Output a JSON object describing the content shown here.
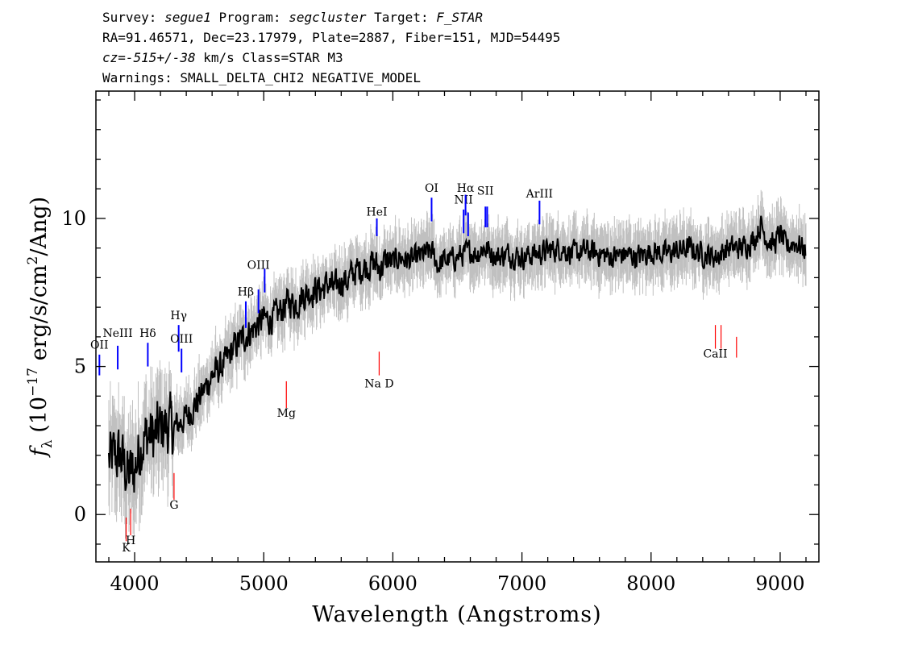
{
  "header": {
    "line1": {
      "survey_label": "Survey: ",
      "survey": "segue1",
      "program_label": " Program: ",
      "program": "segcluster",
      "target_label": " Target: ",
      "target": "F_STAR"
    },
    "line2": "RA=91.46571, Dec=23.17979, Plate=2887, Fiber=151, MJD=54495",
    "line3": {
      "cz": "cz",
      "eq": "=",
      "value": "-515+/-38",
      "rest": " km/s Class=STAR M3"
    },
    "line4": "Warnings: SMALL_DELTA_CHI2 NEGATIVE_MODEL"
  },
  "colors": {
    "flux": "#000000",
    "error_band": "#c0c0c0",
    "emission_lines": "#0000ff",
    "absorption_lines": "#ff0000",
    "axes": "#000000"
  },
  "chart_data": {
    "type": "line",
    "xlabel": "Wavelength (Angstroms)",
    "ylabel": "f_λ (10^-17 erg/s/cm^2/Ang)",
    "xlim": [
      3700,
      9300
    ],
    "ylim": [
      -1.6,
      14.3
    ],
    "xticks": [
      4000,
      5000,
      6000,
      7000,
      8000,
      9000
    ],
    "yticks": [
      0,
      5,
      10
    ],
    "grid": false,
    "series": [
      {
        "x": [
          3800,
          3850,
          3900,
          3950,
          4000,
          4050,
          4100,
          4150,
          4200,
          4250,
          4300,
          4350,
          4400,
          4450,
          4500,
          4550,
          4600,
          4650,
          4700,
          4750,
          4800,
          4850,
          4900,
          4950,
          5000,
          5050,
          5100,
          5150,
          5200,
          5250,
          5300,
          5350,
          5400,
          5450,
          5500,
          5550,
          5600,
          5650,
          5700,
          5750,
          5800,
          5850,
          5900,
          5950,
          6000,
          6050,
          6100,
          6150,
          6200,
          6250,
          6300,
          6350,
          6400,
          6450,
          6500,
          6550,
          6600,
          6650,
          6700,
          6750,
          6800,
          6900,
          7000,
          7100,
          7200,
          7300,
          7400,
          7500,
          7600,
          7700,
          7800,
          7900,
          8000,
          8100,
          8200,
          8300,
          8400,
          8500,
          8600,
          8700,
          8800,
          8850,
          8900,
          8950,
          9000,
          9050,
          9100,
          9150,
          9200
        ],
        "y": [
          1.8,
          2.0,
          1.9,
          1.3,
          1.5,
          2.4,
          2.7,
          2.6,
          2.9,
          3.0,
          2.9,
          3.1,
          3.3,
          3.6,
          3.9,
          4.3,
          4.7,
          4.9,
          5.1,
          5.5,
          5.8,
          6.0,
          6.2,
          6.4,
          6.6,
          6.6,
          6.7,
          7.0,
          7.2,
          7.1,
          7.4,
          7.5,
          7.6,
          7.6,
          7.8,
          7.6,
          7.9,
          7.9,
          8.2,
          8.3,
          8.4,
          8.5,
          8.3,
          8.6,
          8.5,
          8.7,
          8.6,
          8.6,
          8.7,
          8.8,
          8.9,
          8.4,
          8.6,
          8.6,
          8.7,
          8.8,
          8.9,
          8.8,
          9.0,
          8.9,
          8.7,
          8.8,
          8.7,
          8.8,
          8.9,
          9.0,
          8.8,
          8.9,
          8.8,
          8.7,
          8.8,
          8.7,
          8.9,
          8.8,
          8.9,
          9.0,
          8.8,
          8.7,
          9.0,
          9.0,
          9.3,
          9.8,
          9.3,
          9.1,
          9.5,
          9.0,
          9.2,
          9.1,
          8.9
        ]
      }
    ],
    "line_markers": [
      {
        "label": "OII",
        "x": 3727,
        "y1": 4.7,
        "y2": 5.4,
        "type": "emission",
        "label_y": 5.6
      },
      {
        "label": "NeIII",
        "x": 3869,
        "y1": 4.9,
        "y2": 5.7,
        "type": "emission",
        "label_y": 6.0
      },
      {
        "label": "Hδ",
        "x": 4102,
        "y1": 5.0,
        "y2": 5.8,
        "type": "emission",
        "label_y": 6.0
      },
      {
        "label": "Hγ",
        "x": 4341,
        "y1": 5.5,
        "y2": 6.4,
        "type": "emission",
        "label_y": 6.6
      },
      {
        "label": "OIII",
        "x": 4363,
        "y1": 4.8,
        "y2": 5.6,
        "type": "emission",
        "label_y": 5.8
      },
      {
        "label": "Hβ",
        "x": 4861,
        "y1": 6.3,
        "y2": 7.2,
        "type": "emission",
        "label_y": 7.4
      },
      {
        "label": "OIII",
        "x": 4959,
        "y1": 6.8,
        "y2": 7.6,
        "type": "emission",
        "label_y": 8.3
      },
      {
        "label": "OIII",
        "x": 5007,
        "y1": 7.5,
        "y2": 8.3,
        "type": "emission",
        "label_y": 8.3
      },
      {
        "label": "HeI",
        "x": 5876,
        "y1": 9.4,
        "y2": 10.0,
        "type": "emission",
        "label_y": 10.1
      },
      {
        "label": "OI",
        "x": 6300,
        "y1": 9.9,
        "y2": 10.7,
        "type": "emission",
        "label_y": 10.9
      },
      {
        "label": "NII",
        "x": 6548,
        "y1": 9.5,
        "y2": 10.3,
        "type": "emission",
        "label_y": 10.5
      },
      {
        "label": "Hα",
        "x": 6563,
        "y1": 10.1,
        "y2": 10.8,
        "type": "emission",
        "label_y": 10.9
      },
      {
        "label": "NII",
        "x": 6583,
        "y1": 9.4,
        "y2": 10.2,
        "type": "emission",
        "label_y": 10.5
      },
      {
        "label": "SII",
        "x": 6717,
        "y1": 9.7,
        "y2": 10.4,
        "type": "emission",
        "label_y": 10.8
      },
      {
        "label": "SII",
        "x": 6731,
        "y1": 9.7,
        "y2": 10.4,
        "type": "emission",
        "label_y": 10.8
      },
      {
        "label": "ArIII",
        "x": 7136,
        "y1": 9.8,
        "y2": 10.6,
        "type": "emission",
        "label_y": 10.7
      },
      {
        "label": "K",
        "x": 3934,
        "y1": -0.9,
        "y2": -0.1,
        "type": "absorption",
        "label_y": -1.25
      },
      {
        "label": "H",
        "x": 3969,
        "y1": -0.7,
        "y2": 0.2,
        "type": "absorption",
        "label_y": -1.0
      },
      {
        "label": "G",
        "x": 4305,
        "y1": 0.5,
        "y2": 1.4,
        "type": "absorption",
        "label_y": 0.2
      },
      {
        "label": "Mg",
        "x": 5175,
        "y1": 3.6,
        "y2": 4.5,
        "type": "absorption",
        "label_y": 3.3
      },
      {
        "label": "Na D",
        "x": 5894,
        "y1": 4.7,
        "y2": 5.5,
        "type": "absorption",
        "label_y": 4.3
      },
      {
        "label": "CaII",
        "x": 8498,
        "y1": 5.6,
        "y2": 6.4,
        "type": "absorption",
        "label_y": 5.3
      },
      {
        "label": "CaII",
        "x": 8542,
        "y1": 5.6,
        "y2": 6.4,
        "type": "absorption",
        "label_y": 5.3
      },
      {
        "label": "CaII",
        "x": 8662,
        "y1": 5.3,
        "y2": 6.0,
        "type": "absorption",
        "label_y": 5.3
      }
    ]
  }
}
